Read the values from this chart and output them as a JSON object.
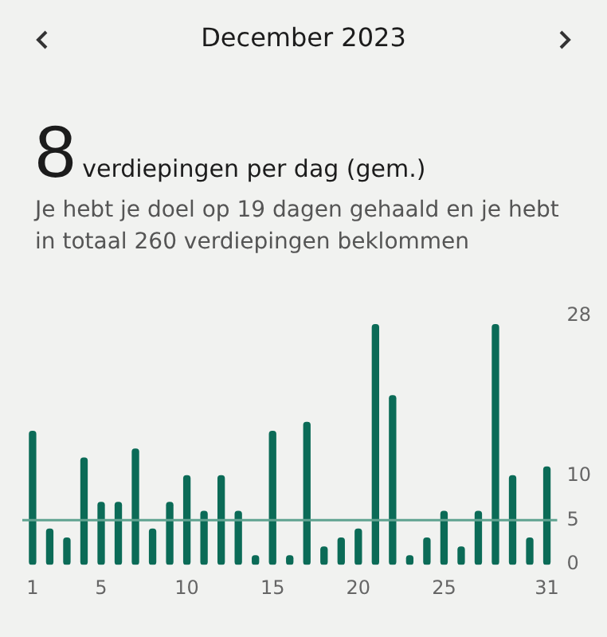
{
  "chart_data": {
    "type": "bar",
    "title": "December 2023",
    "subtitle": "Je hebt je doel op 19 dagen gehaald en je hebt in totaal 260 verdiepingen beklommen",
    "annotations": [
      "8",
      "verdiepingen per dag (gem.)"
    ],
    "x": [
      1,
      2,
      3,
      4,
      5,
      6,
      7,
      8,
      9,
      10,
      11,
      12,
      13,
      14,
      15,
      16,
      17,
      18,
      19,
      20,
      21,
      22,
      23,
      24,
      25,
      26,
      27,
      28,
      29,
      30,
      31
    ],
    "xlim": [
      0.4,
      31.6
    ],
    "xticks": [
      1,
      5,
      10,
      15,
      20,
      25,
      31
    ],
    "values": [
      15,
      4,
      3,
      12,
      7,
      7,
      13,
      4,
      7,
      10,
      6,
      10,
      6,
      1,
      15,
      1,
      16,
      2,
      3,
      4,
      27,
      19,
      1,
      3,
      6,
      2,
      6,
      27,
      10,
      3,
      11
    ],
    "color": "#0b6b57",
    "ylim": [
      0,
      28
    ],
    "yticks": [
      0,
      5,
      10,
      28
    ],
    "ref_lines": [
      {
        "axis": "y",
        "value": 5,
        "color": "#5fa391"
      }
    ],
    "grid": false,
    "legend": false
  }
}
